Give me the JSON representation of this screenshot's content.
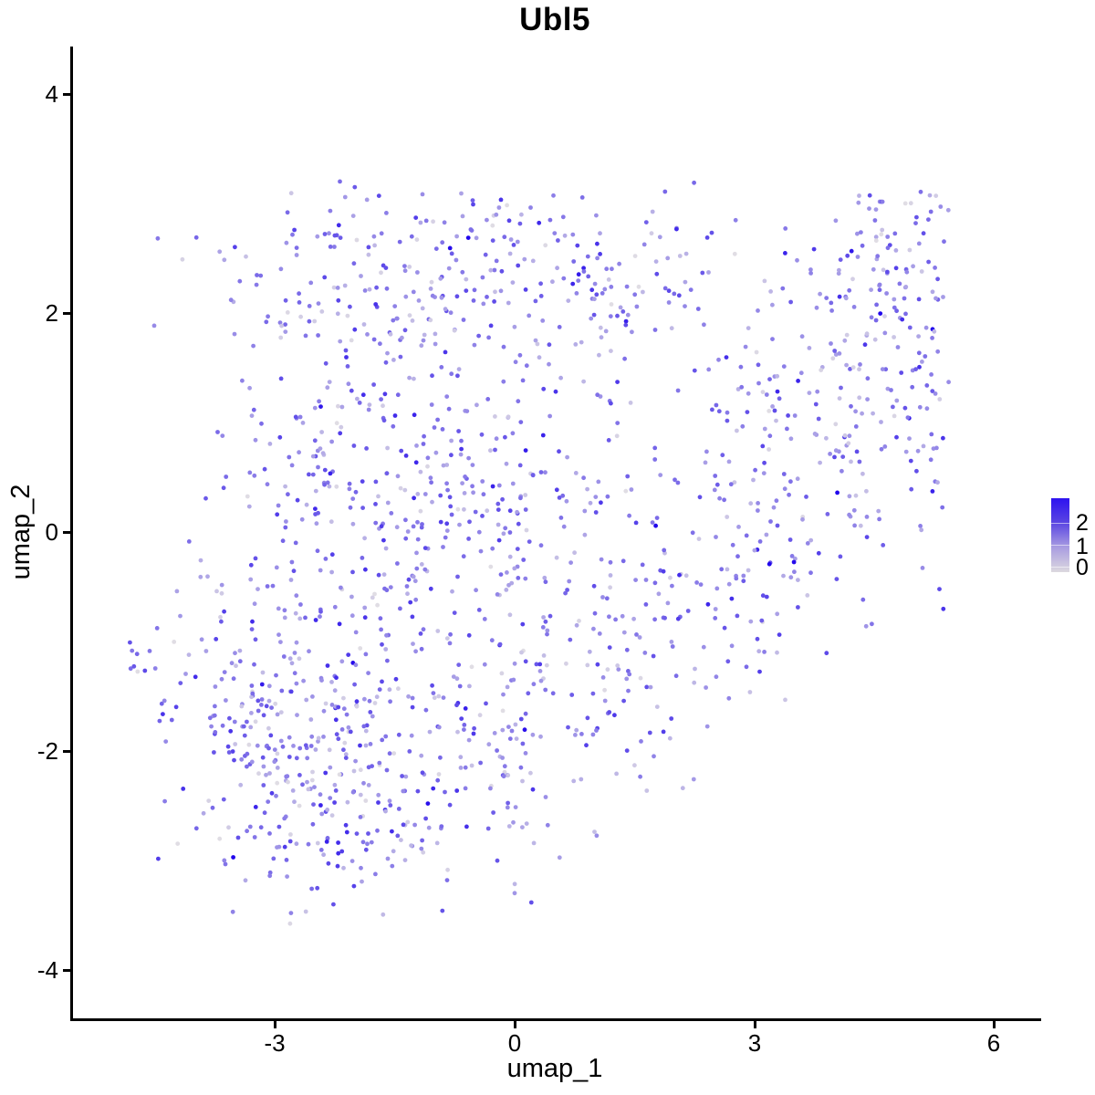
{
  "title": "Ubl5",
  "axes": {
    "x": {
      "label": "umap_1",
      "ticks": [
        "-3",
        "0",
        "3",
        "6"
      ]
    },
    "y": {
      "label": "umap_2",
      "ticks": [
        "4",
        "2",
        "0",
        "-2",
        "-4"
      ]
    }
  },
  "legend": {
    "labels": [
      "2",
      "1",
      "0"
    ],
    "high_color": "#2D12F0",
    "low_color": "#DDD9DF"
  },
  "chart_data": {
    "type": "scatter",
    "title": "Ubl5",
    "xlabel": "umap_1",
    "ylabel": "umap_2",
    "xlim": [
      -5.54,
      6.55
    ],
    "ylim": [
      -4.47,
      4.43
    ],
    "x_tick_values": [
      -3,
      0,
      3,
      6
    ],
    "y_tick_values": [
      4,
      2,
      0,
      -2,
      -4
    ],
    "grid": false,
    "legend_position": "right",
    "color_scale": {
      "low": "#E2DFE4",
      "high": "#2106EC",
      "value_range": [
        0,
        2.55
      ],
      "legend_breaks": [
        0,
        1,
        2
      ]
    },
    "point_radius_px": 2.4,
    "point_count": 1726,
    "seed": 1337,
    "point_bounds": {
      "xmin": -4.85,
      "xmax": 5.45,
      "ymin": -3.62,
      "ymax": 3.2
    },
    "cluster_format": [
      "n",
      "cx",
      "cy",
      "sx",
      "sy"
    ],
    "clusters": [
      [
        170,
        -1.0,
        2.25,
        1.35,
        0.42
      ],
      [
        45,
        -0.7,
        2.85,
        0.9,
        0.18
      ],
      [
        210,
        -2.3,
        0.6,
        0.85,
        0.85
      ],
      [
        150,
        -0.7,
        0.2,
        0.8,
        0.8
      ],
      [
        90,
        0.6,
        0.4,
        0.75,
        0.9
      ],
      [
        230,
        -2.6,
        -2.1,
        0.85,
        0.65
      ],
      [
        85,
        -3.3,
        -1.4,
        0.7,
        0.5
      ],
      [
        110,
        -0.9,
        -2.3,
        0.8,
        0.55
      ],
      [
        75,
        0.3,
        -1.4,
        0.7,
        0.7
      ],
      [
        65,
        1.7,
        -1.2,
        0.6,
        0.6
      ],
      [
        185,
        3.6,
        1.0,
        0.95,
        0.95
      ],
      [
        65,
        3.0,
        -0.6,
        0.6,
        0.55
      ],
      [
        105,
        4.7,
        2.3,
        0.45,
        0.5
      ],
      [
        45,
        5.0,
        1.0,
        0.3,
        0.8
      ],
      [
        6,
        -4.72,
        -1.3,
        0.07,
        0.12
      ],
      [
        60,
        1.2,
        2.1,
        0.55,
        0.45
      ],
      [
        30,
        -2.0,
        -3.0,
        0.45,
        0.3
      ]
    ],
    "expression_distribution": {
      "mean": 1.15,
      "sd": 0.5,
      "zero_fraction": 0.05
    }
  }
}
